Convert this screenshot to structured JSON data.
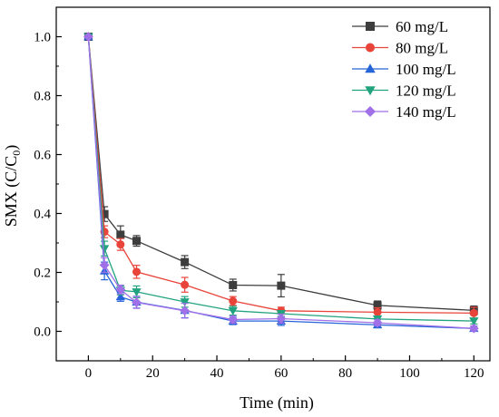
{
  "chart_data": {
    "type": "line",
    "xlabel": "Time  (min)",
    "ylabel_parts": {
      "prefix": "SMX (C/C",
      "sub": "0",
      "suffix": ")"
    },
    "xlim": [
      -10,
      125
    ],
    "ylim": [
      -0.1,
      1.1
    ],
    "xticks": [
      0,
      20,
      40,
      60,
      80,
      100,
      120
    ],
    "xtick_labels": [
      "0",
      "20",
      "40",
      "60",
      "80",
      "100",
      "120"
    ],
    "yticks": [
      0.0,
      0.2,
      0.4,
      0.6,
      0.8,
      1.0
    ],
    "ytick_labels": [
      "0.0",
      "0.2",
      "0.4",
      "0.6",
      "0.8",
      "1.0"
    ],
    "grid": false,
    "legend_position": "top-right",
    "x": [
      0,
      5,
      10,
      15,
      30,
      45,
      60,
      90,
      120
    ],
    "series": [
      {
        "name": "60 mg/L",
        "color": "#3d3d3d",
        "marker": "square",
        "values": [
          1.0,
          0.398,
          0.328,
          0.307,
          0.235,
          0.157,
          0.155,
          0.088,
          0.071
        ],
        "errors": [
          0.0,
          0.025,
          0.03,
          0.018,
          0.022,
          0.02,
          0.038,
          0.015,
          0.015
        ]
      },
      {
        "name": "80 mg/L",
        "color": "#e8443a",
        "marker": "circle",
        "values": [
          1.0,
          0.338,
          0.295,
          0.202,
          0.158,
          0.103,
          0.07,
          0.065,
          0.062
        ],
        "errors": [
          0.0,
          0.02,
          0.02,
          0.022,
          0.025,
          0.015,
          0.012,
          0.015,
          0.02
        ]
      },
      {
        "name": "100 mg/L",
        "color": "#2464d8",
        "marker": "triangle-up",
        "values": [
          1.0,
          0.205,
          0.117,
          0.099,
          0.071,
          0.035,
          0.035,
          0.022,
          0.01
        ],
        "errors": [
          0.0,
          0.03,
          0.015,
          0.02,
          0.025,
          0.012,
          0.015,
          0.01,
          0.008
        ]
      },
      {
        "name": "120 mg/L",
        "color": "#22a37f",
        "marker": "triangle-down",
        "values": [
          1.0,
          0.281,
          0.139,
          0.134,
          0.1,
          0.07,
          0.06,
          0.042,
          0.035
        ],
        "errors": [
          0.0,
          0.025,
          0.015,
          0.02,
          0.018,
          0.015,
          0.01,
          0.01,
          0.01
        ]
      },
      {
        "name": "140 mg/L",
        "color": "#a070e8",
        "marker": "diamond",
        "values": [
          1.0,
          0.225,
          0.142,
          0.098,
          0.07,
          0.04,
          0.043,
          0.029,
          0.01
        ],
        "errors": [
          0.0,
          0.025,
          0.015,
          0.02,
          0.025,
          0.012,
          0.015,
          0.01,
          0.008
        ]
      }
    ]
  }
}
